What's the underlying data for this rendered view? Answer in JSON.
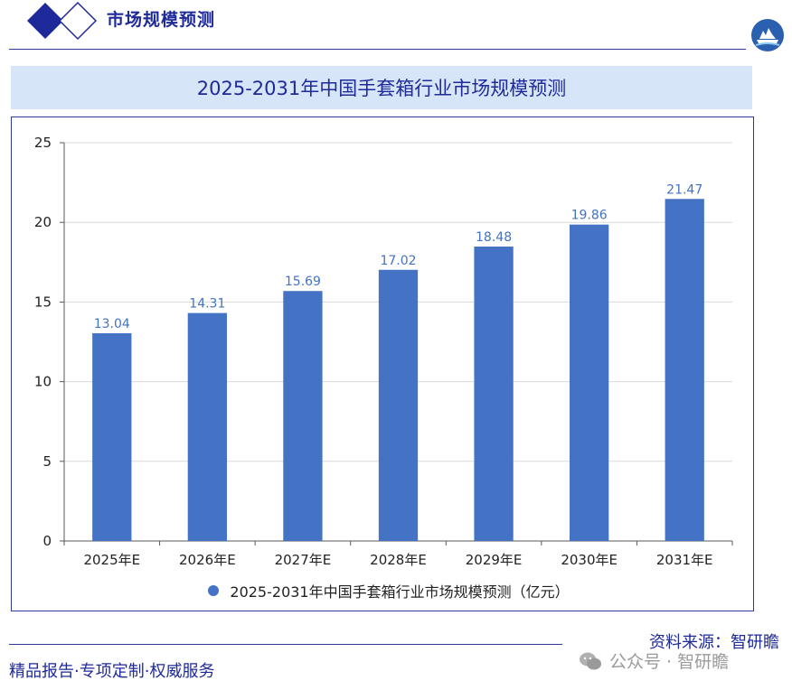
{
  "header": {
    "title": "市场规模预测"
  },
  "chart_title": "2025-2031年中国手套箱行业市场规模预测",
  "chart_data": {
    "type": "bar",
    "title": "2025-2031年中国手套箱行业市场规模预测",
    "categories": [
      "2025年E",
      "2026年E",
      "2027年E",
      "2028年E",
      "2029年E",
      "2030年E",
      "2031年E"
    ],
    "series": [
      {
        "name": "2025-2031年中国手套箱行业市场规模预测（亿元）",
        "values": [
          13.04,
          14.31,
          15.69,
          17.02,
          18.48,
          19.86,
          21.47
        ]
      }
    ],
    "data_labels": [
      "13.04",
      "14.31",
      "15.69",
      "17.02",
      "18.48",
      "19.86",
      "21.47"
    ],
    "ylim": [
      0,
      25
    ],
    "yticks": [
      "0",
      "5",
      "10",
      "15",
      "20",
      "25"
    ],
    "xlabel": "",
    "ylabel": "",
    "grid": true,
    "legend": "bottom",
    "colors": {
      "bar": "#4472c4",
      "label": "#4472c4",
      "grid": "#d9d9d9",
      "axis": "#595959"
    }
  },
  "footer": {
    "source": "资料来源：智研瞻",
    "tagline": "精品报告·专项定制·权威服务",
    "watermark": "公众号 · 智研瞻",
    "watermark_icon": "wechat-icon"
  }
}
